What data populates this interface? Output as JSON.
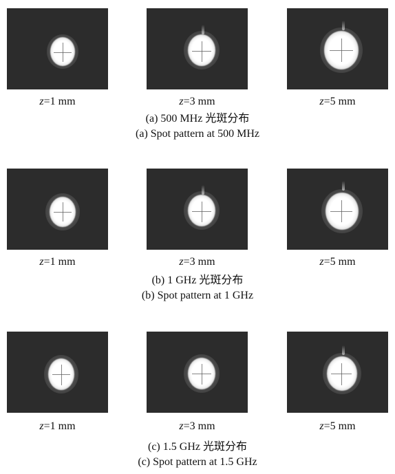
{
  "zlabels": {
    "z": "z",
    "z1": "=1 mm",
    "z3": "=3 mm",
    "z5": "=5 mm"
  },
  "rows": [
    {
      "caption_cn": "(a) 500 MHz 光斑分布",
      "caption_en": "(a) Spot pattern at 500 MHz"
    },
    {
      "caption_cn": "(b) 1 GHz 光斑分布",
      "caption_en": "(b) Spot pattern at 1 GHz"
    },
    {
      "caption_cn": "(c) 1.5 GHz 光斑分布",
      "caption_en": "(c) Spot pattern at 1.5 GHz"
    }
  ]
}
